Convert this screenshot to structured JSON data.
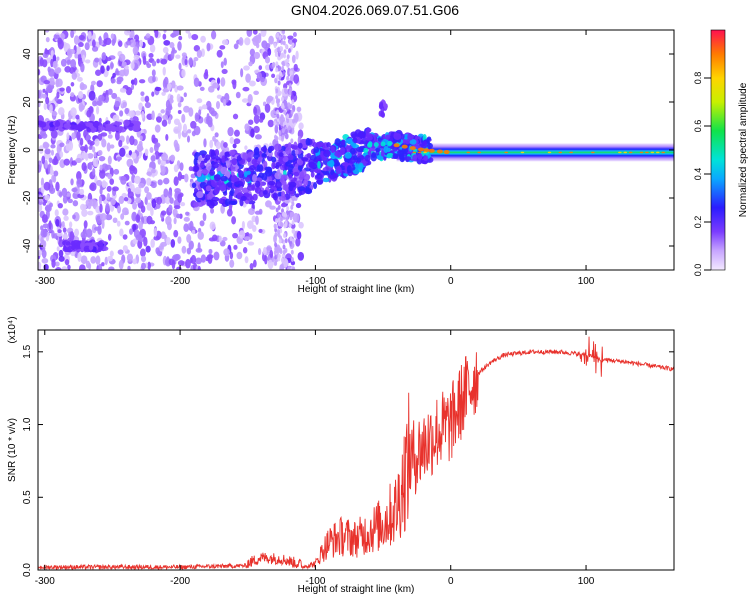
{
  "title": "GN04.2026.069.07.51.G06",
  "chart_data": [
    {
      "type": "heatmap",
      "xlabel": "Height of straight line (km)",
      "ylabel": "Frequency (Hz)",
      "xlim": [
        -305,
        165
      ],
      "ylim": [
        -50,
        50
      ],
      "xticks": [
        -300,
        -200,
        -100,
        0,
        100
      ],
      "yticks": [
        -40,
        -20,
        0,
        20,
        40
      ],
      "colorbar": {
        "label": "Normalized spectral amplitude",
        "range": [
          0,
          1
        ],
        "ticks": [
          "0.0",
          "0.2",
          "0.4",
          "0.6",
          "0.8"
        ]
      },
      "ridge": {
        "description": "dominant frequency versus height",
        "x": [
          -180,
          -150,
          -120,
          -100,
          -80,
          -60,
          -40,
          -20,
          0,
          50,
          100,
          160
        ],
        "freq_hz": [
          -12,
          -11,
          -9,
          -6,
          -3,
          1,
          2,
          0,
          -1,
          -1,
          -1,
          -1
        ]
      },
      "features": [
        {
          "x_range": [
            -305,
            -230
          ],
          "freq_hz": 10
        },
        {
          "x_range": [
            -285,
            -255
          ],
          "freq_hz": -40
        },
        {
          "x": -50,
          "freq_hz": 17
        }
      ],
      "grid": false
    },
    {
      "type": "line",
      "xlabel": "Height of straight line (km)",
      "ylabel": "SNR (10 * v/v)",
      "scale_label": "(x10⁴)",
      "xlim": [
        -305,
        165
      ],
      "ylim": [
        0,
        1.65
      ],
      "xticks": [
        -300,
        -200,
        -100,
        0,
        100
      ],
      "yticks": [
        0.0,
        0.5,
        1.0,
        1.5
      ],
      "series": [
        {
          "color": "#e8322c",
          "x": [
            -305,
            -250,
            -200,
            -150,
            -140,
            -125,
            -110,
            -100,
            -95,
            -90,
            -80,
            -70,
            -60,
            -50,
            -40,
            -30,
            -20,
            -10,
            0,
            10,
            20,
            30,
            40,
            60,
            80,
            100,
            110,
            130,
            165
          ],
          "y": [
            0.02,
            0.02,
            0.02,
            0.03,
            0.07,
            0.06,
            0.02,
            0.04,
            0.12,
            0.18,
            0.22,
            0.2,
            0.25,
            0.3,
            0.4,
            0.75,
            0.85,
            0.95,
            1.0,
            1.2,
            1.35,
            1.43,
            1.48,
            1.5,
            1.5,
            1.48,
            1.45,
            1.43,
            1.38
          ]
        }
      ],
      "grid": false
    }
  ]
}
